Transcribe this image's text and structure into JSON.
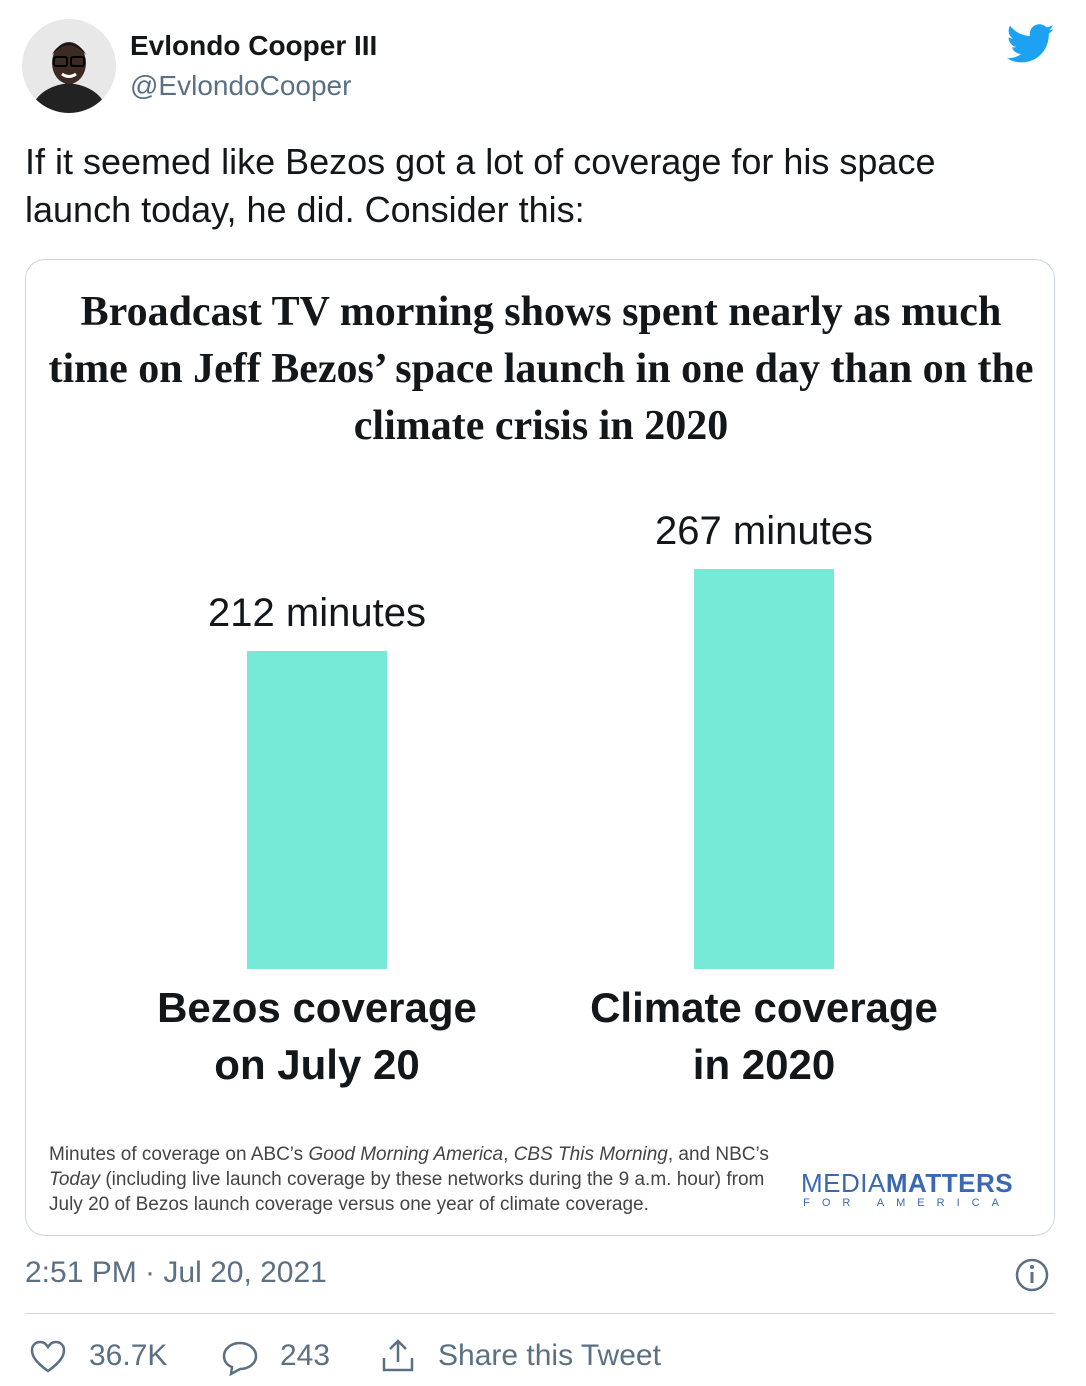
{
  "tweet": {
    "name": "Evlondo Cooper III",
    "handle": "@EvlondoCooper",
    "text": "If it seemed like Bezos got a lot of coverage for his space launch today, he did. Consider this:",
    "timestamp": "2:51 PM · Jul 20, 2021",
    "likes": "36.7K",
    "replies": "243",
    "share": "Share this Tweet"
  },
  "chart_data": {
    "type": "bar",
    "title": "Broadcast TV morning shows spent nearly as much time on Jeff Bezos’ space launch in one day than on the climate crisis in 2020",
    "categories": [
      "Bezos coverage on July 20",
      "Climate coverage in 2020"
    ],
    "values": [
      212,
      267
    ],
    "value_labels": [
      "212 minutes",
      "267 minutes"
    ],
    "color": "#76ead7"
  },
  "card": {
    "footnote": [
      "Minutes of coverage on ABC’s ",
      "Good Morning America",
      ", ",
      "CBS This Morning",
      ", and NBC’s ",
      "Today",
      " (including live launch coverage by these networks during the 9 a.m. hour) from July 20 of Bezos launch coverage versus one year of climate coverage."
    ],
    "logo": {
      "light": "MEDIA",
      "bold": "MATTERS",
      "sub": "FOR AMERICA"
    }
  }
}
